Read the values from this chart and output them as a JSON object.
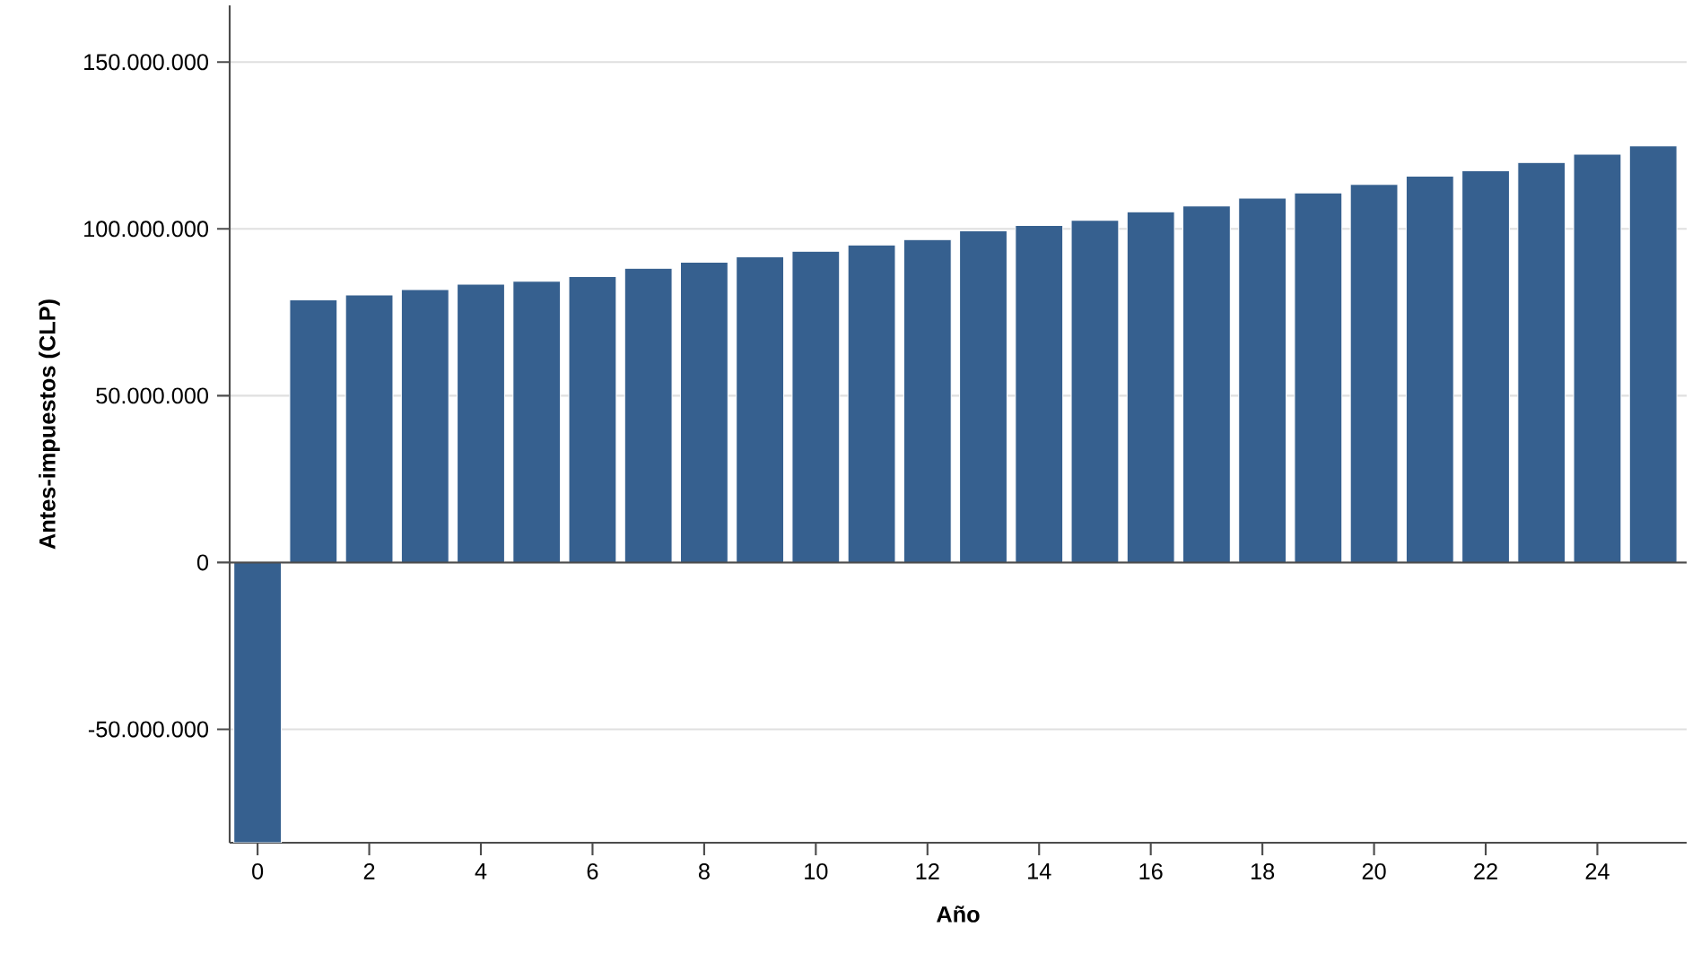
{
  "chart_data": {
    "type": "bar",
    "xlabel": "Año",
    "ylabel": "Antes-impuestos (CLP)",
    "x": [
      0,
      1,
      2,
      3,
      4,
      5,
      6,
      7,
      8,
      9,
      10,
      11,
      12,
      13,
      14,
      15,
      16,
      17,
      18,
      19,
      20,
      21,
      22,
      23,
      24,
      25
    ],
    "values": [
      -84000000,
      78700000,
      80200000,
      81800000,
      83400000,
      84300000,
      85700000,
      88200000,
      90000000,
      91600000,
      93300000,
      95200000,
      96800000,
      99400000,
      101000000,
      102600000,
      105100000,
      106900000,
      109200000,
      110800000,
      113300000,
      115800000,
      117400000,
      119900000,
      122400000,
      124900000
    ],
    "color": "#36608f",
    "xlim": [
      -0.5,
      25.6
    ],
    "xticks": [
      0,
      2,
      4,
      6,
      8,
      10,
      12,
      14,
      16,
      18,
      20,
      22,
      24
    ],
    "ylim": [
      -84000000,
      167000000
    ],
    "yticks": [
      {
        "value": -50000000,
        "label": "-50.000.000"
      },
      {
        "value": 0,
        "label": "0"
      },
      {
        "value": 50000000,
        "label": "50.000.000"
      },
      {
        "value": 100000000,
        "label": "100.000.000"
      },
      {
        "value": 150000000,
        "label": "150.000.000"
      }
    ],
    "grid": "y"
  }
}
